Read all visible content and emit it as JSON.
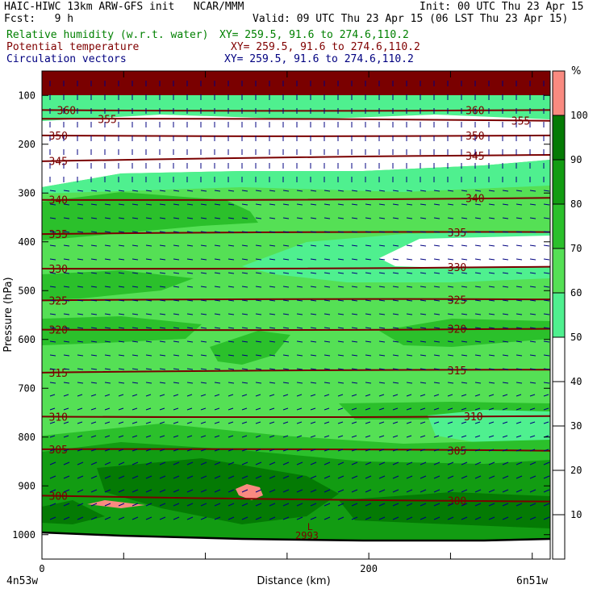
{
  "header": {
    "line1_left": "HAIC-HIWC 13km ARW-GFS init   NCAR/MMM",
    "line1_right": "Init: 00 UTC Thu 23 Apr 15",
    "line2_left": "Fcst:   9 h",
    "line2_right": "Valid: 09 UTC Thu 23 Apr 15 (06 LST Thu 23 Apr 15)",
    "field1": "Relative humidity (w.r.t. water)",
    "field1_xy": "XY= 259.5, 91.6 to 274.6,110.2",
    "field2": "Potential temperature",
    "field2_xy": "XY= 259.5, 91.6 to 274.6,110.2",
    "field3": "Circulation vectors",
    "field3_xy": "XY= 259.5, 91.6 to 274.6,110.2",
    "colors": {
      "field1": "#008000",
      "field2": "#800000",
      "field3": "#000080"
    }
  },
  "chart_data": {
    "type": "contour cross-section",
    "ylabel": "Pressure (hPa)",
    "xlabel": "Distance (km)",
    "x_left_label": "4n53w",
    "x_right_label": "6n51w",
    "xlim": [
      0,
      311
    ],
    "ylim": [
      1050,
      50
    ],
    "x_ticks": [
      0,
      200
    ],
    "y_ticks": [
      100,
      200,
      300,
      400,
      500,
      600,
      700,
      800,
      900,
      1000
    ],
    "colorbar": {
      "unit": "%",
      "levels": [
        10,
        20,
        30,
        40,
        50,
        60,
        70,
        80,
        90,
        100
      ],
      "bins": [
        {
          "min": 0,
          "max": 50,
          "color": "#ffffff"
        },
        {
          "min": 50,
          "max": 60,
          "color": "#4ff08f"
        },
        {
          "min": 60,
          "max": 70,
          "color": "#55e055"
        },
        {
          "min": 70,
          "max": 80,
          "color": "#2bc02b"
        },
        {
          "min": 80,
          "max": 90,
          "color": "#129c12"
        },
        {
          "min": 90,
          "max": 100,
          "color": "#047a04"
        },
        {
          "min": 100,
          "max": 110,
          "color": "#f98a80"
        }
      ]
    },
    "theta_contours": [
      {
        "value": 360,
        "left": 130,
        "right": 130,
        "labels": [
          {
            "text": "360",
            "x": 15
          },
          {
            "text": "360",
            "x": 265
          }
        ]
      },
      {
        "value": 355,
        "left": 148,
        "right": 152,
        "labels": [
          {
            "text": "355",
            "x": 40
          },
          {
            "text": "355",
            "x": 293
          }
        ]
      },
      {
        "value": 350,
        "left": 182,
        "right": 182,
        "labels": [
          {
            "text": "350",
            "x": 10
          },
          {
            "text": "350",
            "x": 265
          }
        ]
      },
      {
        "value": 345,
        "left": 235,
        "right": 222,
        "labels": [
          {
            "text": "345",
            "x": 10
          },
          {
            "text": "345",
            "x": 265
          }
        ]
      },
      {
        "value": 340,
        "left": 314,
        "right": 310,
        "labels": [
          {
            "text": "340",
            "x": 10
          },
          {
            "text": "340",
            "x": 265
          }
        ]
      },
      {
        "value": 335,
        "left": 384,
        "right": 380,
        "labels": [
          {
            "text": "335",
            "x": 10
          },
          {
            "text": "335",
            "x": 254
          }
        ]
      },
      {
        "value": 330,
        "left": 455,
        "right": 451,
        "labels": [
          {
            "text": "330",
            "x": 10
          },
          {
            "text": "330",
            "x": 254
          }
        ]
      },
      {
        "value": 325,
        "left": 520,
        "right": 518,
        "labels": [
          {
            "text": "325",
            "x": 10
          },
          {
            "text": "325",
            "x": 254
          }
        ]
      },
      {
        "value": 320,
        "left": 580,
        "right": 578,
        "labels": [
          {
            "text": "320",
            "x": 10
          },
          {
            "text": "320",
            "x": 254
          }
        ]
      },
      {
        "value": 315,
        "left": 668,
        "right": 662,
        "labels": [
          {
            "text": "315",
            "x": 10
          },
          {
            "text": "315",
            "x": 254
          }
        ]
      },
      {
        "value": 310,
        "left": 758,
        "right": 757,
        "labels": [
          {
            "text": "310",
            "x": 10
          },
          {
            "text": "310",
            "x": 264
          }
        ]
      },
      {
        "value": 305,
        "left": 825,
        "right": 828,
        "labels": [
          {
            "text": "305",
            "x": 10
          },
          {
            "text": "305",
            "x": 254
          }
        ]
      },
      {
        "value": 300,
        "left": 920,
        "right": 932,
        "labels": [
          {
            "text": "300",
            "x": 10
          },
          {
            "text": "300",
            "x": 254
          }
        ]
      }
    ],
    "annotations": [
      {
        "text": "L",
        "x": 164,
        "y": 985
      },
      {
        "text": "2993",
        "x": 157,
        "y": 1000
      }
    ],
    "grid": false,
    "legend": "colorbar right"
  }
}
